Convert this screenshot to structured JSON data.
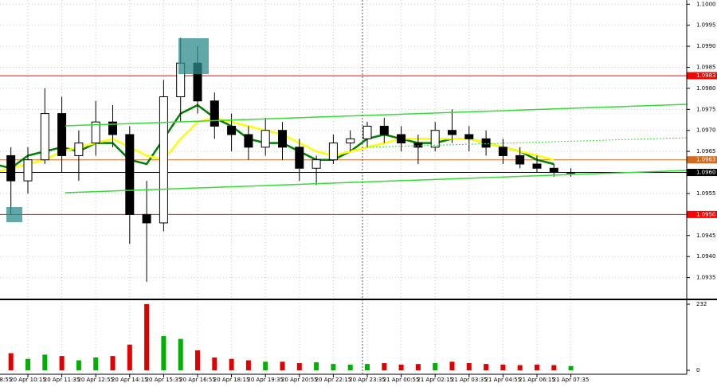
{
  "chart_data": {
    "type": "candlestick",
    "categories": [
      "20 Apr 08:55",
      null,
      "20 Apr 10:15",
      null,
      "20 Apr 11:35",
      null,
      "20 Apr 12:55",
      null,
      "20 Apr 14:15",
      null,
      "20 Apr 15:35",
      null,
      "20 Apr 16:55",
      null,
      "20 Apr 18:15",
      null,
      "20 Apr 19:35",
      null,
      "20 Apr 20:55",
      null,
      "20 Apr 22:15",
      null,
      "20 Apr 23:35",
      null,
      "21 Apr 00:55",
      null,
      "21 Apr 02:15",
      null,
      "21 Apr 03:35",
      null,
      "21 Apr 04:55",
      null,
      "21 Apr 06:15",
      null,
      "21 Apr 07:35"
    ],
    "ohlc": [
      [
        1.0971,
        1.0974,
        1.0962,
        1.0964
      ],
      [
        1.0964,
        1.0966,
        1.095,
        1.0958
      ],
      [
        1.0958,
        1.0966,
        1.0955,
        1.0963
      ],
      [
        1.0963,
        1.098,
        1.0962,
        1.0974
      ],
      [
        1.0974,
        1.0978,
        1.096,
        1.0964
      ],
      [
        1.0964,
        1.097,
        1.0958,
        1.0967
      ],
      [
        1.0967,
        1.0977,
        1.0964,
        1.0972
      ],
      [
        1.0972,
        1.0976,
        1.0966,
        1.0969
      ],
      [
        1.0969,
        1.0971,
        1.0943,
        1.095
      ],
      [
        1.095,
        1.0958,
        1.0934,
        1.0948
      ],
      [
        1.0948,
        1.0982,
        1.0946,
        1.0978
      ],
      [
        1.0978,
        1.0992,
        1.0972,
        1.0986
      ],
      [
        1.0986,
        1.099,
        1.0974,
        1.0977
      ],
      [
        1.0977,
        1.0979,
        1.0968,
        1.0971
      ],
      [
        1.0971,
        1.0974,
        1.0965,
        1.0969
      ],
      [
        1.0969,
        1.0971,
        1.0963,
        1.0966
      ],
      [
        1.0966,
        1.0973,
        1.0964,
        1.097
      ],
      [
        1.097,
        1.0972,
        1.0963,
        1.0966
      ],
      [
        1.0966,
        1.0968,
        1.0958,
        1.0961
      ],
      [
        1.0961,
        1.0964,
        1.0957,
        1.0963
      ],
      [
        1.0963,
        1.0969,
        1.0962,
        1.0967
      ],
      [
        1.0967,
        1.097,
        1.0965,
        1.0968
      ],
      [
        1.0968,
        1.0972,
        1.0966,
        1.0971
      ],
      [
        1.0971,
        1.0973,
        1.0967,
        1.0969
      ],
      [
        1.0969,
        1.0971,
        1.0965,
        1.0967
      ],
      [
        1.0967,
        1.0969,
        1.0962,
        1.0966
      ],
      [
        1.0966,
        1.0972,
        1.0965,
        1.097
      ],
      [
        1.097,
        1.0975,
        1.0967,
        1.0969
      ],
      [
        1.0969,
        1.0971,
        1.0965,
        1.0968
      ],
      [
        1.0968,
        1.097,
        1.0964,
        1.0966
      ],
      [
        1.0966,
        1.0968,
        1.0962,
        1.0964
      ],
      [
        1.0964,
        1.0966,
        1.0961,
        1.0962
      ],
      [
        1.0962,
        1.0964,
        1.096,
        1.0961
      ],
      [
        1.0961,
        1.0962,
        1.0959,
        1.096
      ],
      [
        1.096,
        1.0961,
        1.0959,
        1.096
      ]
    ],
    "series": [
      {
        "color": "#008000",
        "values": [
          1.0962,
          1.0961,
          1.0964,
          1.0965,
          1.0966,
          1.0965,
          1.0967,
          1.0967,
          1.0963,
          1.0962,
          1.0968,
          1.0974,
          1.0976,
          1.0973,
          1.0971,
          1.0968,
          1.0967,
          1.0967,
          1.0965,
          1.0963,
          1.0963,
          1.0965,
          1.0968,
          1.0969,
          1.0968,
          1.0967,
          1.0967,
          1.0968,
          1.0968,
          1.0967,
          1.0966,
          1.0965,
          1.0963,
          1.0962,
          null
        ]
      },
      {
        "color": "#ffff00",
        "values": [
          1.096,
          1.0961,
          1.0962,
          1.0963,
          1.0965,
          1.0966,
          1.0967,
          1.0968,
          1.0966,
          1.0964,
          1.0963,
          1.0968,
          1.0972,
          1.0973,
          1.0972,
          1.0971,
          1.097,
          1.0969,
          1.0967,
          1.0965,
          1.0964,
          1.0965,
          1.0966,
          1.0967,
          1.0968,
          1.0968,
          1.0968,
          1.0968,
          1.0968,
          1.0967,
          1.0966,
          1.0965,
          1.0964,
          1.0963,
          null
        ]
      }
    ],
    "ylim": [
      1.093,
      1.1001
    ],
    "yticks": [
      {
        "value": 1.1,
        "label": "1.1000"
      },
      1.0995,
      {
        "value": 1.099,
        "label": "1.0990"
      },
      1.0985,
      {
        "value": 1.098,
        "label": "1.0980"
      },
      1.0975,
      {
        "value": 1.097,
        "label": "1.0970"
      },
      1.0965,
      {
        "value": 1.096,
        "label": "1.0960"
      },
      1.0955,
      {
        "value": 1.095,
        "label": "1.0950"
      },
      1.0945,
      {
        "value": 1.094,
        "label": "1.0940"
      },
      1.0935
    ],
    "levels": [
      1.0983,
      1.0963,
      {
        "value": 1.096,
        "label": "1.0960"
      },
      {
        "value": 1.095,
        "label": "1.0950"
      }
    ],
    "level_colors": [
      "#ff0000",
      "#d2691e",
      "#000000",
      "#ff0000"
    ],
    "grid": true,
    "volume": {
      "values": [
        45,
        60,
        40,
        55,
        50,
        35,
        45,
        50,
        90,
        232,
        120,
        110,
        70,
        45,
        40,
        35,
        30,
        30,
        25,
        28,
        22,
        20,
        22,
        25,
        20,
        22,
        25,
        30,
        25,
        22,
        20,
        18,
        20,
        18,
        15
      ],
      "ylim": [
        0,
        232
      ],
      "yticks": [
        0,
        232
      ]
    }
  }
}
